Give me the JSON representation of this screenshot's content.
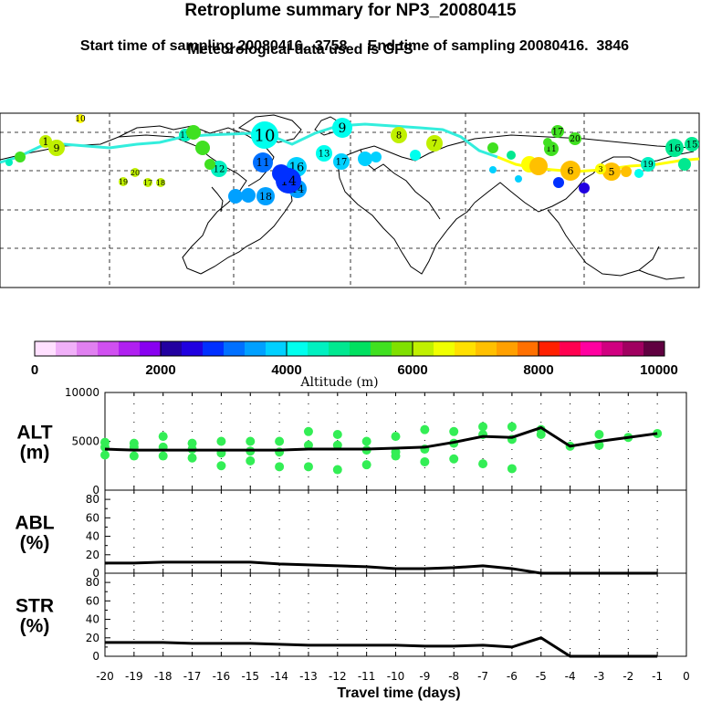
{
  "header": {
    "title": "Retroplume summary for NP3_20080415",
    "start_label": "Start time of sampling 20080416.  3758",
    "end_label": "End time of sampling 20080416.  3846",
    "met_label": "Meteorological data used is GFS"
  },
  "colors": {
    "line": "#000000",
    "trajectory": "#33eedd",
    "trajectory_end": "#ffff00",
    "dots": "#33ee55"
  },
  "colorbar": {
    "title": "Altitude (m)",
    "ticks": [
      "0",
      "2000",
      "4000",
      "6000",
      "8000",
      "10000"
    ],
    "colors": [
      "#ffe0ff",
      "#f0b0f8",
      "#e080f0",
      "#d050f0",
      "#b020f0",
      "#8800f0",
      "#2200a0",
      "#2000e0",
      "#0030ff",
      "#0070ff",
      "#00a0ff",
      "#00d0ff",
      "#00ffee",
      "#00f0c0",
      "#00e890",
      "#00e060",
      "#40e020",
      "#80e000",
      "#c0f000",
      "#f0ff00",
      "#ffe000",
      "#ffc000",
      "#ffa000",
      "#ff7000",
      "#ff2000",
      "#ff0050",
      "#ff00a0",
      "#d00080",
      "#a00060",
      "#600040"
    ]
  },
  "map_markers": [
    {
      "label": "10",
      "color": "#ffff00"
    },
    {
      "label": "1",
      "color": "#c0f000"
    },
    {
      "label": "9",
      "color": "#c0f000"
    },
    {
      "label": "10",
      "color": "#00ffee"
    },
    {
      "label": "12",
      "color": "#00f0c0"
    },
    {
      "label": "11",
      "color": "#0070ff"
    },
    {
      "label": "16",
      "color": "#00d0ff"
    },
    {
      "label": "13",
      "color": "#00ffee"
    },
    {
      "label": "17",
      "color": "#00d0ff"
    },
    {
      "label": "14",
      "color": "#00a0ff"
    },
    {
      "label": "9",
      "color": "#00ffee"
    },
    {
      "label": "8",
      "color": "#c0f000"
    },
    {
      "label": "17",
      "color": "#40e020"
    },
    {
      "label": "20",
      "color": "#40e020"
    },
    {
      "label": "11",
      "color": "#40e020"
    },
    {
      "label": "7",
      "color": "#c0f000"
    },
    {
      "label": "6",
      "color": "#ffc000"
    },
    {
      "label": "5",
      "color": "#ffc000"
    },
    {
      "label": "3",
      "color": "#ffff00"
    },
    {
      "label": "19",
      "color": "#00f0c0"
    },
    {
      "label": "16",
      "color": "#00e890"
    },
    {
      "label": "15",
      "color": "#00e890"
    },
    {
      "label": "17",
      "color": "#00f0c0"
    },
    {
      "label": "18",
      "color": "#00a0ff"
    },
    {
      "label": "14",
      "color": "#0030ff"
    },
    {
      "label": "20",
      "color": "#c0f000"
    },
    {
      "label": "19",
      "color": "#c0f000"
    },
    {
      "label": "17",
      "color": "#c0f000"
    },
    {
      "label": "18",
      "color": "#c0f000"
    }
  ],
  "chart_data": [
    {
      "type": "scatter",
      "panel": "ALT",
      "ylabel_lines": [
        "ALT",
        "(m)"
      ],
      "ylim": [
        0,
        10000
      ],
      "yticks": [
        "10000",
        "5000",
        "0"
      ],
      "xlim": [
        -20,
        0
      ],
      "line_x": [
        -20,
        -19,
        -18,
        -17,
        -16,
        -15,
        -14,
        -13,
        -12,
        -11,
        -10,
        -9,
        -8,
        -7,
        -6,
        -5,
        -4,
        -3,
        -2,
        -1
      ],
      "line_y": [
        4200,
        4100,
        4100,
        4100,
        4100,
        4100,
        4100,
        4200,
        4200,
        4200,
        4300,
        4400,
        4900,
        5500,
        5400,
        6400,
        4500,
        5000,
        5400,
        5800
      ],
      "points": [
        {
          "x": -20,
          "y": 4900
        },
        {
          "x": -20,
          "y": 4400
        },
        {
          "x": -20,
          "y": 3600
        },
        {
          "x": -19,
          "y": 4800
        },
        {
          "x": -19,
          "y": 4400
        },
        {
          "x": -19,
          "y": 3500
        },
        {
          "x": -18,
          "y": 5500
        },
        {
          "x": -18,
          "y": 4400
        },
        {
          "x": -18,
          "y": 3500
        },
        {
          "x": -17,
          "y": 4800
        },
        {
          "x": -17,
          "y": 4200
        },
        {
          "x": -17,
          "y": 3300
        },
        {
          "x": -16,
          "y": 5000
        },
        {
          "x": -16,
          "y": 3800
        },
        {
          "x": -16,
          "y": 2500
        },
        {
          "x": -15,
          "y": 5000
        },
        {
          "x": -15,
          "y": 4000
        },
        {
          "x": -15,
          "y": 3000
        },
        {
          "x": -14,
          "y": 5000
        },
        {
          "x": -14,
          "y": 3900
        },
        {
          "x": -14,
          "y": 2400
        },
        {
          "x": -13,
          "y": 6000
        },
        {
          "x": -13,
          "y": 4600
        },
        {
          "x": -13,
          "y": 2400
        },
        {
          "x": -12,
          "y": 5700
        },
        {
          "x": -12,
          "y": 4600
        },
        {
          "x": -12,
          "y": 2100
        },
        {
          "x": -11,
          "y": 5000
        },
        {
          "x": -11,
          "y": 4100
        },
        {
          "x": -11,
          "y": 2600
        },
        {
          "x": -10,
          "y": 5500
        },
        {
          "x": -10,
          "y": 3900
        },
        {
          "x": -10,
          "y": 3500
        },
        {
          "x": -9,
          "y": 6200
        },
        {
          "x": -9,
          "y": 4200
        },
        {
          "x": -9,
          "y": 2900
        },
        {
          "x": -8,
          "y": 6000
        },
        {
          "x": -8,
          "y": 4800
        },
        {
          "x": -8,
          "y": 3200
        },
        {
          "x": -7,
          "y": 6500
        },
        {
          "x": -7,
          "y": 5700
        },
        {
          "x": -7,
          "y": 2700
        },
        {
          "x": -6,
          "y": 6500
        },
        {
          "x": -6,
          "y": 5200
        },
        {
          "x": -6,
          "y": 2200
        },
        {
          "x": -5,
          "y": 6200
        },
        {
          "x": -5,
          "y": 5700
        },
        {
          "x": -4,
          "y": 4500
        },
        {
          "x": -3,
          "y": 5700
        },
        {
          "x": -3,
          "y": 4600
        },
        {
          "x": -2,
          "y": 5400
        },
        {
          "x": -1,
          "y": 5800
        }
      ]
    },
    {
      "type": "line",
      "panel": "ABL",
      "ylabel_lines": [
        "ABL",
        "(%)"
      ],
      "ylim": [
        0,
        90
      ],
      "yticks": [
        "80",
        "60",
        "40",
        "20",
        "0"
      ],
      "xlim": [
        -20,
        0
      ],
      "x": [
        -20,
        -19,
        -18,
        -17,
        -16,
        -15,
        -14,
        -13,
        -12,
        -11,
        -10,
        -9,
        -8,
        -7,
        -6,
        -5,
        -4,
        -3,
        -2,
        -1
      ],
      "y": [
        11,
        11,
        12,
        12,
        12,
        12,
        10,
        9,
        8,
        7,
        5,
        5,
        6,
        8,
        5,
        0,
        0,
        0,
        0,
        0
      ]
    },
    {
      "type": "line",
      "panel": "STR",
      "ylabel_lines": [
        "STR",
        "(%)"
      ],
      "ylim": [
        0,
        90
      ],
      "yticks": [
        "80",
        "60",
        "40",
        "20",
        "0"
      ],
      "xlim": [
        -20,
        0
      ],
      "xlabel": "Travel time (days)",
      "xticks": [
        "-20",
        "-19",
        "-18",
        "-17",
        "-16",
        "-15",
        "-14",
        "-13",
        "-12",
        "-11",
        "-10",
        "-9",
        "-8",
        "-7",
        "-6",
        "-5",
        "-4",
        "-3",
        "-2",
        "-1",
        "0"
      ],
      "x": [
        -20,
        -19,
        -18,
        -17,
        -16,
        -15,
        -14,
        -13,
        -12,
        -11,
        -10,
        -9,
        -8,
        -7,
        -6,
        -5,
        -4,
        -3,
        -2,
        -1
      ],
      "y": [
        15,
        15,
        15,
        14,
        14,
        14,
        13,
        12,
        12,
        12,
        12,
        11,
        11,
        12,
        10,
        20,
        0,
        0,
        0,
        0
      ]
    }
  ]
}
